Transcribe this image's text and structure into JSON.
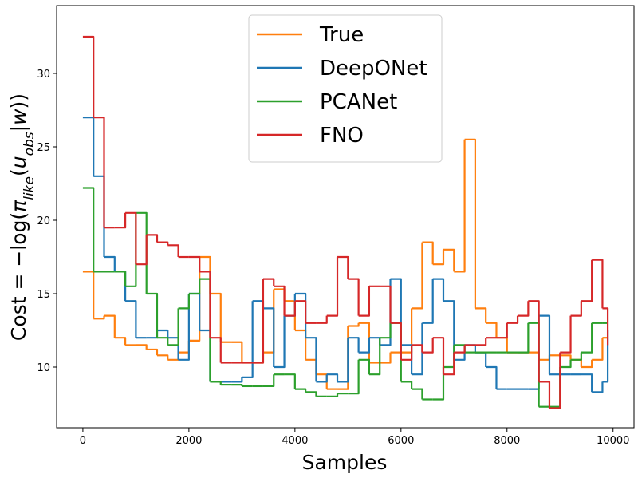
{
  "chart_data": {
    "type": "line",
    "drawstyle": "steps-post",
    "xlabel": "Samples",
    "ylabel": [
      {
        "text": "Cost = −log("
      },
      {
        "text": "π",
        "italic": true
      },
      {
        "text": "like",
        "italic": true,
        "sub": true
      },
      {
        "text": "("
      },
      {
        "text": "u",
        "italic": true
      },
      {
        "text": "obs",
        "italic": true,
        "sub": true
      },
      {
        "text": "|"
      },
      {
        "text": "w",
        "italic": true
      },
      {
        "text": "))"
      }
    ],
    "x": [
      0,
      200,
      400,
      600,
      800,
      1000,
      1200,
      1400,
      1600,
      1800,
      2000,
      2200,
      2400,
      2600,
      2800,
      3000,
      3200,
      3400,
      3600,
      3800,
      4000,
      4200,
      4400,
      4600,
      4800,
      5000,
      5200,
      5400,
      5600,
      5800,
      6000,
      6200,
      6400,
      6600,
      6800,
      7000,
      7200,
      7400,
      7600,
      7800,
      8000,
      8200,
      8400,
      8600,
      8800,
      9000,
      9200,
      9400,
      9600,
      9800,
      9900
    ],
    "series": [
      {
        "name": "True",
        "color": "#ff7f0e",
        "values": [
          16.5,
          13.3,
          13.5,
          12.0,
          11.5,
          11.5,
          11.2,
          10.8,
          10.5,
          11.0,
          11.8,
          17.5,
          15.0,
          11.7,
          11.7,
          10.3,
          10.3,
          11.0,
          15.3,
          14.5,
          12.5,
          10.5,
          9.5,
          8.5,
          8.5,
          12.8,
          13.0,
          10.3,
          10.3,
          11.0,
          11.0,
          14.0,
          18.5,
          17.0,
          18.0,
          16.5,
          25.5,
          14.0,
          13.0,
          12.0,
          11.0,
          11.0,
          11.0,
          10.5,
          10.8,
          10.8,
          10.5,
          10.0,
          10.5,
          12.0,
          12.0
        ]
      },
      {
        "name": "DeepONet",
        "color": "#1f77b4",
        "values": [
          27.0,
          23.0,
          17.5,
          16.5,
          14.5,
          12.0,
          12.0,
          12.5,
          12.0,
          10.5,
          15.0,
          12.5,
          9.0,
          9.0,
          9.0,
          9.3,
          14.5,
          14.0,
          10.0,
          13.5,
          15.0,
          12.0,
          9.0,
          9.5,
          9.0,
          12.0,
          11.0,
          12.0,
          11.5,
          16.0,
          11.5,
          9.5,
          13.0,
          16.0,
          14.5,
          10.5,
          11.5,
          11.0,
          10.0,
          8.5,
          8.5,
          8.5,
          8.5,
          13.5,
          9.5,
          9.5,
          9.5,
          9.5,
          8.3,
          9.0,
          12.5
        ]
      },
      {
        "name": "PCANet",
        "color": "#2ca02c",
        "values": [
          22.2,
          16.5,
          16.5,
          16.5,
          15.5,
          20.5,
          15.0,
          12.0,
          11.5,
          14.0,
          15.0,
          16.0,
          9.0,
          8.8,
          8.8,
          8.7,
          8.7,
          8.7,
          9.5,
          9.5,
          8.5,
          8.3,
          8.0,
          8.0,
          8.2,
          8.2,
          10.5,
          9.5,
          12.0,
          13.0,
          9.0,
          8.5,
          7.8,
          7.8,
          10.0,
          11.5,
          11.0,
          11.0,
          11.0,
          11.0,
          11.0,
          11.0,
          13.0,
          7.3,
          7.3,
          10.0,
          10.5,
          11.0,
          13.0,
          13.0,
          13.0
        ]
      },
      {
        "name": "FNO",
        "color": "#d62728",
        "values": [
          32.5,
          27.0,
          19.5,
          19.5,
          20.5,
          17.0,
          19.0,
          18.5,
          18.3,
          17.5,
          17.5,
          16.5,
          12.0,
          10.3,
          10.3,
          10.3,
          10.3,
          16.0,
          15.5,
          13.5,
          14.5,
          13.0,
          13.0,
          13.5,
          17.5,
          16.0,
          13.5,
          15.5,
          15.5,
          13.0,
          10.5,
          11.5,
          11.0,
          12.0,
          9.5,
          11.0,
          11.5,
          11.5,
          12.0,
          12.0,
          13.0,
          13.5,
          14.5,
          9.0,
          7.2,
          11.0,
          13.5,
          14.5,
          17.3,
          14.0,
          11.5
        ]
      }
    ],
    "xlim": [
      -495,
      10395
    ],
    "xticks": [
      0,
      2000,
      4000,
      6000,
      8000,
      10000
    ],
    "ylim": [
      5.87,
      34.62
    ],
    "yticks": [
      10,
      15,
      20,
      25,
      30
    ],
    "grid": false,
    "legend": "upper center"
  }
}
